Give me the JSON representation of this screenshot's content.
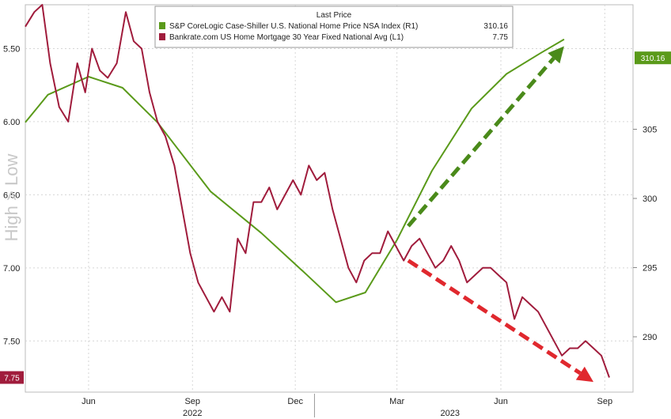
{
  "chart_data": {
    "type": "line",
    "legend": {
      "title": "Last Price",
      "placement": "top-center",
      "entries": [
        {
          "label": "S&P CoreLogic Case-Shiller U.S. National Home Price NSA Index (R1)",
          "value": "310.16",
          "color": "#5a9a1a"
        },
        {
          "label": "Bankrate.com US Home Mortgage 30 Year Fixed National Avg (L1)",
          "value": "7.75",
          "color": "#a01c3c"
        }
      ]
    },
    "left_axis": {
      "label": "High > Low",
      "inverted": true,
      "ylim": [
        5.2,
        7.85
      ],
      "ticks": [
        "5.50",
        "6.00",
        "6.50",
        "7.00",
        "7.50"
      ],
      "tick_values": [
        5.5,
        6.0,
        6.5,
        7.0,
        7.5
      ],
      "last_value_badge": "7.75"
    },
    "right_axis": {
      "ylim": [
        286,
        314
      ],
      "ticks": [
        "290",
        "295",
        "300",
        "305"
      ],
      "tick_values": [
        290,
        295,
        300,
        305
      ],
      "last_value_badge": "310.16"
    },
    "x_axis": {
      "tick_labels": [
        "Jun",
        "Sep",
        "Dec",
        "Mar",
        "Jun",
        "Sep"
      ],
      "tick_dates": [
        "2022-06-15",
        "2022-09-15",
        "2022-12-15",
        "2023-03-15",
        "2023-06-15",
        "2023-09-15"
      ],
      "year_labels": [
        "2022",
        "2023"
      ],
      "year_dates": [
        "2022-09-15",
        "2023-05-01"
      ],
      "year_divider_date": "2023-01-01",
      "range": [
        "2022-04-20",
        "2023-10-10"
      ]
    },
    "grid": true,
    "series": [
      {
        "name": "S&P CoreLogic Case-Shiller U.S. National Home Price NSA Index",
        "axis": "right",
        "color": "#5a9a1a",
        "x": [
          "2022-04-20",
          "2022-05-10",
          "2022-06-15",
          "2022-07-15",
          "2022-08-15",
          "2022-10-01",
          "2022-11-15",
          "2022-12-25",
          "2023-01-20",
          "2023-02-15",
          "2023-03-15",
          "2023-04-15",
          "2023-05-20",
          "2023-06-20",
          "2023-07-20",
          "2023-08-10"
        ],
        "values": [
          305.5,
          307.5,
          308.8,
          308.0,
          305.5,
          300.5,
          297.5,
          294.5,
          292.5,
          293.2,
          297.0,
          302.0,
          306.5,
          309.0,
          310.5,
          311.5
        ]
      },
      {
        "name": "Bankrate.com US Home Mortgage 30 Year Fixed National Avg",
        "axis": "left",
        "color": "#a01c3c",
        "x": [
          "2022-04-20",
          "2022-04-28",
          "2022-05-05",
          "2022-05-12",
          "2022-05-20",
          "2022-05-28",
          "2022-06-05",
          "2022-06-12",
          "2022-06-18",
          "2022-06-25",
          "2022-07-02",
          "2022-07-10",
          "2022-07-18",
          "2022-07-25",
          "2022-08-01",
          "2022-08-08",
          "2022-08-15",
          "2022-08-22",
          "2022-08-30",
          "2022-09-06",
          "2022-09-13",
          "2022-09-20",
          "2022-09-27",
          "2022-10-04",
          "2022-10-11",
          "2022-10-18",
          "2022-10-25",
          "2022-11-01",
          "2022-11-08",
          "2022-11-15",
          "2022-11-22",
          "2022-11-29",
          "2022-12-06",
          "2022-12-13",
          "2022-12-20",
          "2022-12-27",
          "2023-01-03",
          "2023-01-10",
          "2023-01-17",
          "2023-01-24",
          "2023-01-31",
          "2023-02-07",
          "2023-02-14",
          "2023-02-21",
          "2023-02-28",
          "2023-03-07",
          "2023-03-14",
          "2023-03-21",
          "2023-03-28",
          "2023-04-04",
          "2023-04-11",
          "2023-04-18",
          "2023-04-25",
          "2023-05-02",
          "2023-05-09",
          "2023-05-16",
          "2023-05-23",
          "2023-05-30",
          "2023-06-06",
          "2023-06-13",
          "2023-06-20",
          "2023-06-27",
          "2023-07-04",
          "2023-07-11",
          "2023-07-18",
          "2023-07-25",
          "2023-08-01",
          "2023-08-08",
          "2023-08-15",
          "2023-08-22",
          "2023-08-29",
          "2023-09-05",
          "2023-09-12",
          "2023-09-19"
        ],
        "values": [
          5.35,
          5.25,
          5.2,
          5.6,
          5.9,
          6.0,
          5.6,
          5.8,
          5.5,
          5.65,
          5.7,
          5.6,
          5.25,
          5.45,
          5.5,
          5.8,
          6.0,
          6.1,
          6.3,
          6.6,
          6.9,
          7.1,
          7.2,
          7.3,
          7.2,
          7.3,
          6.8,
          6.9,
          6.55,
          6.55,
          6.45,
          6.6,
          6.5,
          6.4,
          6.5,
          6.3,
          6.4,
          6.35,
          6.6,
          6.8,
          7.0,
          7.1,
          6.95,
          6.9,
          6.9,
          6.75,
          6.85,
          6.95,
          6.85,
          6.8,
          6.9,
          7.0,
          6.95,
          6.85,
          6.95,
          7.1,
          7.05,
          7.0,
          7.0,
          7.05,
          7.1,
          7.35,
          7.2,
          7.25,
          7.3,
          7.4,
          7.5,
          7.6,
          7.55,
          7.55,
          7.5,
          7.55,
          7.6,
          7.75
        ]
      }
    ],
    "annotations": [
      {
        "type": "arrow",
        "color": "#4a8a1a",
        "style": "dashed",
        "from": [
          "2023-03-25",
          298.0
        ],
        "to": [
          "2023-08-10",
          311.0
        ],
        "axis": "right"
      },
      {
        "type": "arrow",
        "color": "#e0282e",
        "style": "dashed",
        "from": [
          "2023-03-25",
          6.95
        ],
        "to": [
          "2023-09-05",
          7.78
        ],
        "axis": "left"
      }
    ]
  }
}
